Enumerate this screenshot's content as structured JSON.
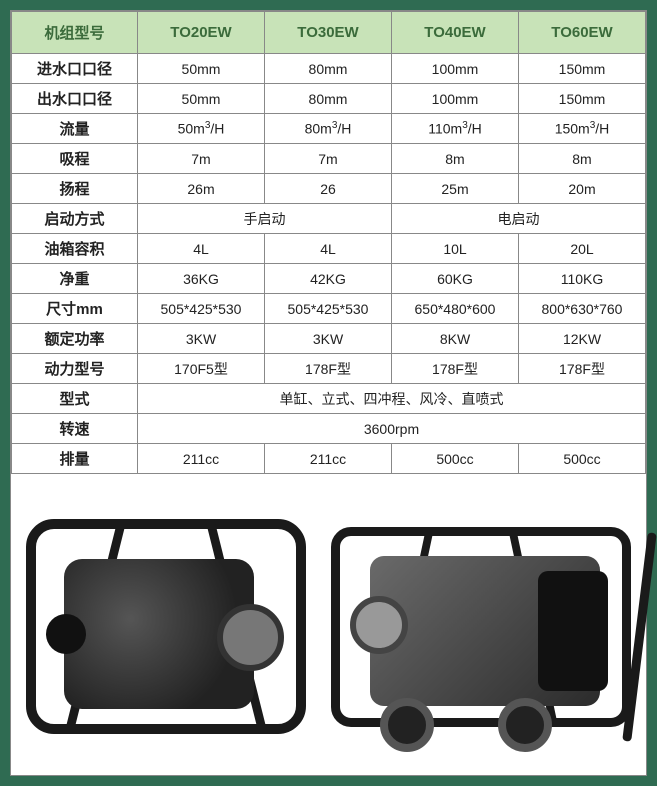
{
  "colors": {
    "page_bg": "#2f6b52",
    "header_bg": "#c8e3b8",
    "header_text": "#3b6b3b",
    "border": "#888888",
    "cell_bg": "#ffffff",
    "text": "#222222"
  },
  "table": {
    "header": [
      "机组型号",
      "TO20EW",
      "TO30EW",
      "TO40EW",
      "TO60EW"
    ],
    "rows": [
      {
        "label": "进水口口径",
        "cells": [
          "50mm",
          "80mm",
          "100mm",
          "150mm"
        ]
      },
      {
        "label": "出水口口径",
        "cells": [
          "50mm",
          "80mm",
          "100mm",
          "150mm"
        ]
      },
      {
        "label": "流量",
        "cells": [
          "50m³/H",
          "80m³/H",
          "110m³/H",
          "150m³/H"
        ]
      },
      {
        "label": "吸程",
        "cells": [
          "7m",
          "7m",
          "8m",
          "8m"
        ]
      },
      {
        "label": "扬程",
        "cells": [
          "26m",
          "26",
          "25m",
          "20m"
        ]
      },
      {
        "label": "启动方式",
        "merge": [
          2,
          2
        ],
        "cells": [
          "手启动",
          "电启动"
        ]
      },
      {
        "label": "油箱容积",
        "cells": [
          "4L",
          "4L",
          "10L",
          "20L"
        ]
      },
      {
        "label": "净重",
        "cells": [
          "36KG",
          "42KG",
          "60KG",
          "110KG"
        ]
      },
      {
        "label": "尺寸mm",
        "cells": [
          "505*425*530",
          "505*425*530",
          "650*480*600",
          "800*630*760"
        ]
      },
      {
        "label": "额定功率",
        "cells": [
          "3KW",
          "3KW",
          "8KW",
          "12KW"
        ]
      },
      {
        "label": "动力型号",
        "cells": [
          "170F5型",
          "178F型",
          "178F型",
          "178F型"
        ]
      },
      {
        "label": "型式",
        "merge": [
          4
        ],
        "cells": [
          "单缸、立式、四冲程、风冷、直喷式"
        ]
      },
      {
        "label": "转速",
        "merge": [
          4
        ],
        "cells": [
          "3600rpm"
        ]
      },
      {
        "label": "排量",
        "cells": [
          "211cc",
          "211cc",
          "500cc",
          "500cc"
        ]
      }
    ]
  },
  "products": [
    {
      "name": "pump-frame-small",
      "style": "frame1"
    },
    {
      "name": "pump-frame-wheeled",
      "style": "frame2"
    }
  ]
}
